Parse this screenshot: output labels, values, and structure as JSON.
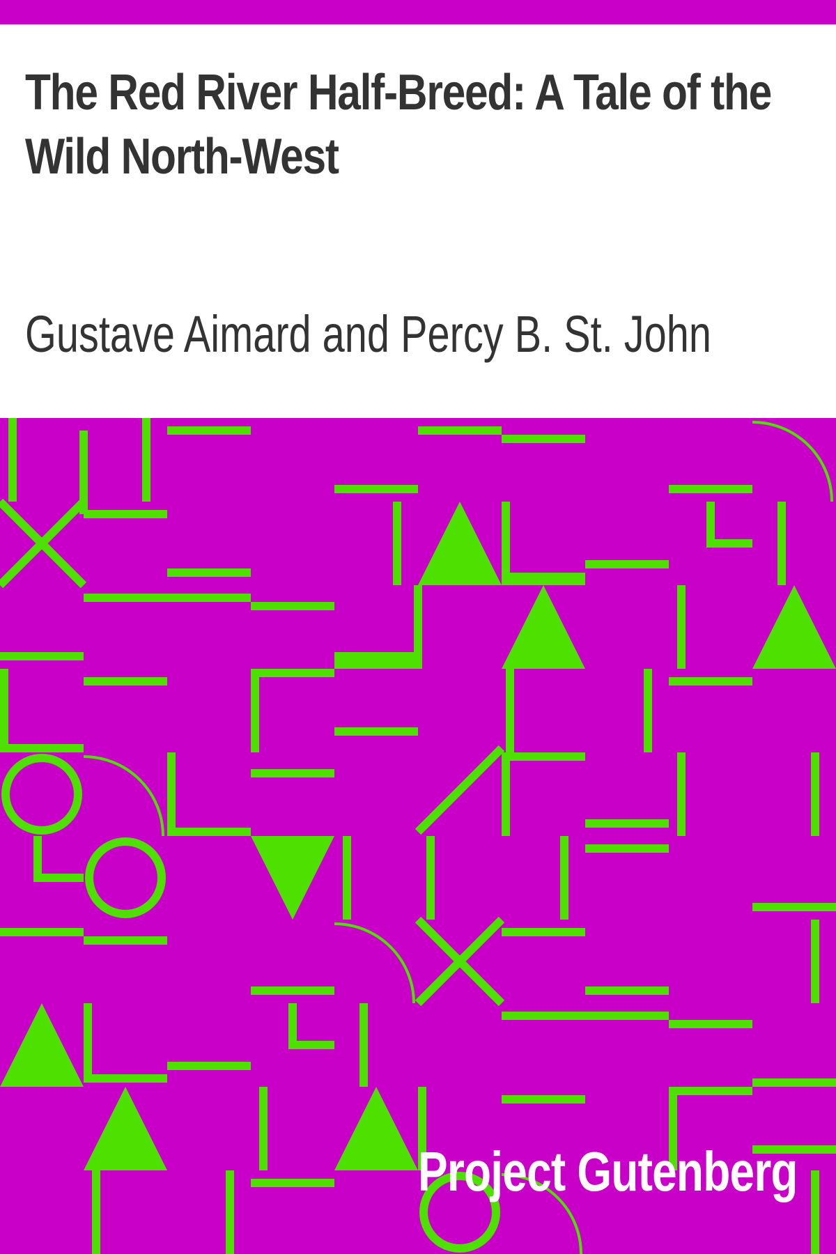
{
  "cover": {
    "title": "The Red River Half-Breed: A Tale of the Wild North-West",
    "author": "Gustave Aimard and Percy B. St. John",
    "publisher": "Project Gutenberg"
  },
  "colors": {
    "background": "#ffffff",
    "accent": "#c800c8",
    "pattern_fill": "#c800c8",
    "pattern_mark": "#4de000",
    "text": "#333333",
    "publisher_text": "#ffffff"
  },
  "pattern": {
    "style": "geometric tile pattern",
    "shapes": [
      "line",
      "triangle",
      "circle",
      "cross",
      "arc",
      "corner"
    ]
  }
}
